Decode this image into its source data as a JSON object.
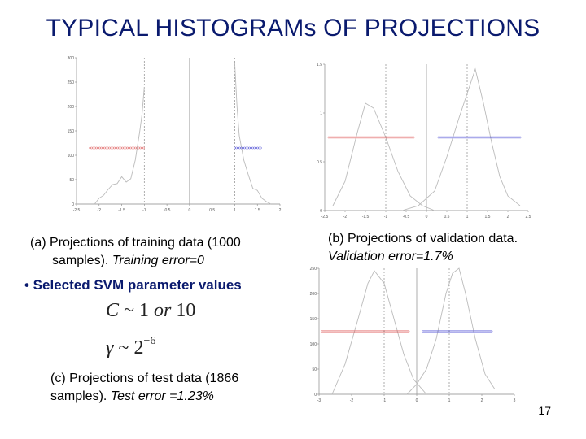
{
  "slide": {
    "title": "TYPICAL HISTOGRAMs OF PROJECTIONS",
    "bullet": "• Selected SVM parameter values",
    "math_c_var": "C",
    "math_c_rest": "~ 1",
    "math_c_or": "or",
    "math_c_val": "10",
    "math_g_var": "γ",
    "math_g_rest": "~ 2",
    "math_g_exp": "−6",
    "page_number": "17"
  },
  "captions": {
    "a_label": "(a)",
    "a_text1": "Projections of training data (1000",
    "a_text2": "samples).",
    "a_em": "Training error=0",
    "b_text1": "(b) Projections of validation data.",
    "b_em": "Validation error=1.7%",
    "c_text1": "(c) Projections of test data (1866",
    "c_text2": "samples).",
    "c_em": "Test error =1.23%"
  },
  "chart_data": [
    {
      "id": "a",
      "type": "line",
      "xlim": [
        -2.5,
        2
      ],
      "ylim": [
        0,
        300
      ],
      "xticks": [
        "-2.5",
        "-2",
        "-1.5",
        "-1",
        "-0.5",
        "0",
        "0.5",
        "1",
        "1.5",
        "2"
      ],
      "yticks": [
        "0",
        "50",
        "100",
        "150",
        "200",
        "250",
        "300"
      ],
      "markers": {
        "y": 115,
        "neg": [
          -2.2,
          -1.0
        ],
        "pos": [
          1.0,
          1.6
        ]
      },
      "vlines": [
        -1,
        0,
        1
      ],
      "neg_curve": [
        [
          -2.1,
          0
        ],
        [
          -2.0,
          12
        ],
        [
          -1.9,
          18
        ],
        [
          -1.8,
          30
        ],
        [
          -1.7,
          40
        ],
        [
          -1.6,
          42
        ],
        [
          -1.5,
          56
        ],
        [
          -1.4,
          45
        ],
        [
          -1.3,
          52
        ],
        [
          -1.2,
          90
        ],
        [
          -1.1,
          150
        ],
        [
          -1.05,
          185
        ],
        [
          -1.0,
          240
        ]
      ],
      "pos_curve": [
        [
          1.0,
          290
        ],
        [
          1.05,
          200
        ],
        [
          1.1,
          140
        ],
        [
          1.2,
          90
        ],
        [
          1.3,
          60
        ],
        [
          1.4,
          32
        ],
        [
          1.5,
          28
        ],
        [
          1.6,
          12
        ],
        [
          1.7,
          5
        ],
        [
          1.8,
          0
        ]
      ],
      "colors": {
        "neg": "#e06060",
        "pos": "#5a5ad8",
        "curve": "#bbbbbb",
        "vline": "#999999"
      }
    },
    {
      "id": "b",
      "type": "line",
      "xlim": [
        -2.5,
        2.5
      ],
      "ylim": [
        0,
        1.5
      ],
      "xticks": [
        "-2.5",
        "-2",
        "-1.5",
        "-1",
        "-0.5",
        "0",
        "0.5",
        "1",
        "1.5",
        "2",
        "2.5"
      ],
      "yticks": [
        "0",
        "0.5",
        "1",
        "1.5"
      ],
      "markers": {
        "y": 0.75,
        "neg": [
          -2.4,
          -0.3
        ],
        "pos": [
          0.3,
          2.3
        ]
      },
      "vlines": [
        -1,
        0,
        1
      ],
      "neg_curve": [
        [
          -2.3,
          0.05
        ],
        [
          -2.0,
          0.3
        ],
        [
          -1.7,
          0.8
        ],
        [
          -1.5,
          1.1
        ],
        [
          -1.3,
          1.05
        ],
        [
          -1.0,
          0.75
        ],
        [
          -0.7,
          0.4
        ],
        [
          -0.4,
          0.15
        ],
        [
          -0.1,
          0.05
        ],
        [
          0.2,
          0.0
        ]
      ],
      "pos_curve": [
        [
          -0.6,
          0.0
        ],
        [
          -0.2,
          0.05
        ],
        [
          0.2,
          0.2
        ],
        [
          0.5,
          0.55
        ],
        [
          0.8,
          0.95
        ],
        [
          1.0,
          1.2
        ],
        [
          1.2,
          1.45
        ],
        [
          1.4,
          1.1
        ],
        [
          1.6,
          0.7
        ],
        [
          1.8,
          0.35
        ],
        [
          2.0,
          0.15
        ],
        [
          2.3,
          0.05
        ]
      ],
      "colors": {
        "neg": "#e06060",
        "pos": "#5a5ad8",
        "curve": "#bbbbbb",
        "vline": "#999999"
      }
    },
    {
      "id": "c",
      "type": "line",
      "xlim": [
        -3,
        3
      ],
      "ylim": [
        0,
        250
      ],
      "xticks": [
        "-3",
        "-2",
        "-1",
        "0",
        "1",
        "2",
        "3"
      ],
      "yticks": [
        "0",
        "50",
        "100",
        "150",
        "200",
        "250"
      ],
      "markers": {
        "y": 125,
        "neg": [
          -2.9,
          -0.2
        ],
        "pos": [
          0.2,
          2.3
        ]
      },
      "vlines": [
        -1,
        0,
        1
      ],
      "neg_curve": [
        [
          -2.6,
          0
        ],
        [
          -2.2,
          60
        ],
        [
          -1.8,
          150
        ],
        [
          -1.5,
          220
        ],
        [
          -1.3,
          245
        ],
        [
          -1.0,
          220
        ],
        [
          -0.7,
          150
        ],
        [
          -0.4,
          80
        ],
        [
          -0.1,
          30
        ],
        [
          0.3,
          0
        ]
      ],
      "pos_curve": [
        [
          -0.3,
          0
        ],
        [
          0.0,
          20
        ],
        [
          0.3,
          50
        ],
        [
          0.6,
          110
        ],
        [
          0.9,
          200
        ],
        [
          1.1,
          240
        ],
        [
          1.3,
          250
        ],
        [
          1.5,
          200
        ],
        [
          1.8,
          110
        ],
        [
          2.1,
          40
        ],
        [
          2.4,
          10
        ]
      ],
      "colors": {
        "neg": "#e06060",
        "pos": "#5a5ad8",
        "curve": "#bbbbbb",
        "vline": "#999999"
      }
    }
  ]
}
